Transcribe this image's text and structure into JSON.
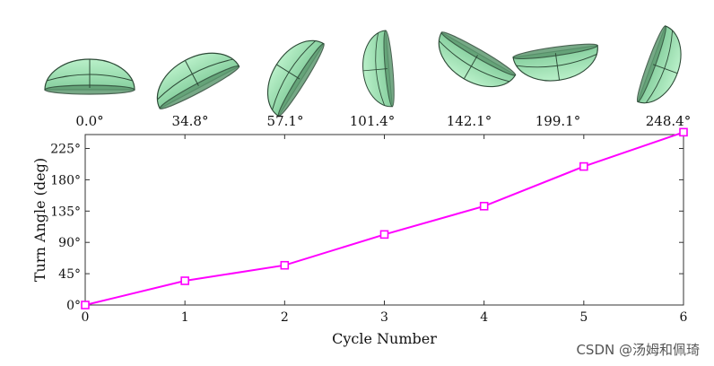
{
  "chart_data": {
    "type": "line",
    "title": "",
    "xlabel": "Cycle Number",
    "ylabel": "Turn Angle (deg)",
    "x": [
      0,
      1,
      2,
      3,
      4,
      5,
      6
    ],
    "xlim": [
      0,
      6
    ],
    "ylim": [
      0,
      245
    ],
    "xticks": [
      "0",
      "1",
      "2",
      "3",
      "4",
      "5",
      "6"
    ],
    "yticks": [
      {
        "value": 0,
        "label": "0°"
      },
      {
        "value": 45,
        "label": "45°"
      },
      {
        "value": 90,
        "label": "90°"
      },
      {
        "value": 135,
        "label": "135°"
      },
      {
        "value": 180,
        "label": "180°"
      },
      {
        "value": 225,
        "label": "225°"
      }
    ],
    "series": [
      {
        "name": "Turn Angle",
        "color": "#ff00ff",
        "marker": "square",
        "values": [
          0.0,
          34.8,
          57.1,
          101.4,
          142.1,
          199.1,
          248.4
        ]
      }
    ],
    "grid": false,
    "legend": "none"
  },
  "illustrations": {
    "body_color": "#9fe0b4",
    "shade_color": "#5f9b72",
    "edge_color": "#2d4a37",
    "captions": [
      "0.0°",
      "34.8°",
      "57.1°",
      "101.4°",
      "142.1°",
      "199.1°",
      "248.4°"
    ]
  },
  "watermark": "CSDN @汤姆和佩琦"
}
